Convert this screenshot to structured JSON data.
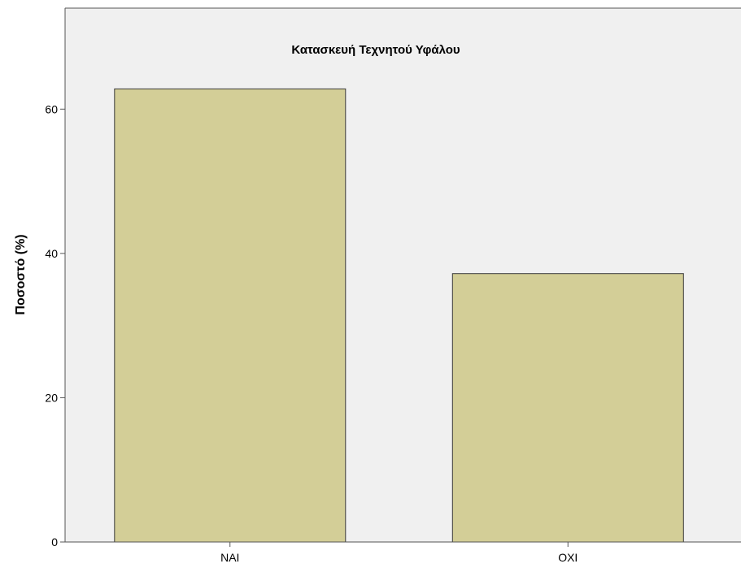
{
  "chart_data": {
    "type": "bar",
    "title": "Κατασκευή Τεχνητού Υφάλου",
    "xlabel": "",
    "ylabel": "Ποσοστό (%)",
    "categories": [
      "ΝΑΙ",
      "ΟΧΙ"
    ],
    "values": [
      62.8,
      37.2
    ],
    "ylim": [
      0,
      74
    ],
    "yticks": [
      0,
      20,
      40,
      60
    ],
    "grid": false,
    "legend": "none",
    "colors": {
      "plot_background": "#f0f0f0",
      "bar_fill": "#d3ce97",
      "bar_stroke": "#3a3a3a",
      "axis": "#555555",
      "text": "#000000"
    }
  }
}
